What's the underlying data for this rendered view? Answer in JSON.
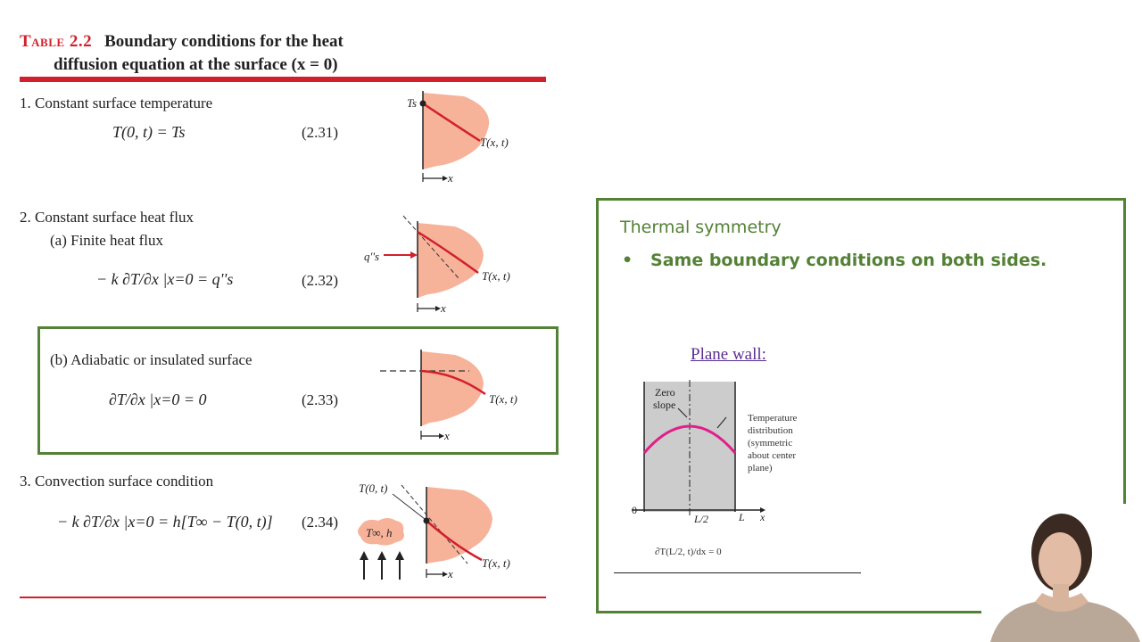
{
  "table": {
    "label": "Table 2.2",
    "title_line1": "Boundary conditions for the heat",
    "title_line2": "diffusion equation at the surface (x = 0)",
    "row1": {
      "heading": "1.  Constant surface temperature",
      "equation": "T(0, t) = Ts",
      "number": "(2.31)",
      "fig_ts": "Ts",
      "fig_txt": "T(x, t)",
      "fig_x": "x"
    },
    "row2": {
      "heading": "2.  Constant surface heat flux",
      "sub_a": "(a)  Finite heat flux",
      "equation_a": "− k ∂T/∂x |x=0 = q''s",
      "number_a": "(2.32)",
      "fig_q": "q''s",
      "fig_txt": "T(x, t)",
      "fig_x": "x",
      "sub_b": "(b)  Adiabatic or insulated surface",
      "equation_b": "∂T/∂x |x=0 = 0",
      "number_b": "(2.33)",
      "fig_b_txt": "T(x, t)",
      "fig_b_x": "x"
    },
    "row3": {
      "heading": "3.  Convection surface condition",
      "equation": "− k ∂T/∂x |x=0 = h[T∞ − T(0, t)]",
      "number": "(2.34)",
      "fig_t0": "T(0, t)",
      "fig_tinf": "T∞, h",
      "fig_txt": "T(x, t)",
      "fig_x": "x"
    }
  },
  "panel": {
    "title": "Thermal symmetry",
    "bullet": "Same boundary conditions on both sides.",
    "plane_wall_link": "Plane wall:",
    "zero_slope": "Zero slope",
    "temp_dist": "Temperature distribution (symmetric about center plane)",
    "axis_zero": "0",
    "axis_half": "L/2",
    "axis_L": "L",
    "axis_x": "x",
    "bc_eq": "∂T(L/2, t)/dx = 0"
  },
  "colors": {
    "accent_red": "#d1202c",
    "panel_green": "#538135",
    "solid_fill": "#f7b29a",
    "wall_gray": "#cccccc",
    "curve_magenta": "#e0208a",
    "link_purple": "#5a2d91"
  }
}
